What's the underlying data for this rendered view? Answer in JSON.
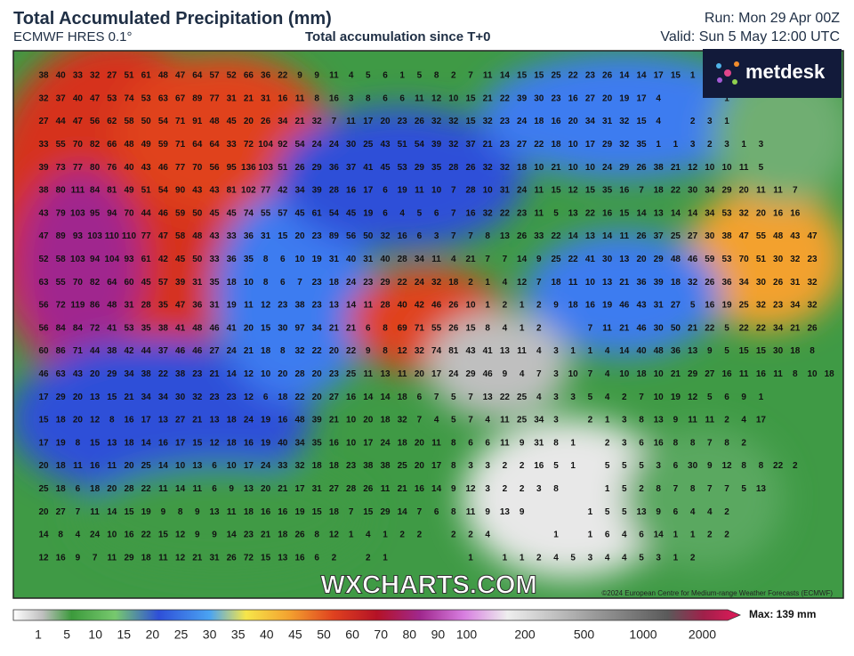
{
  "header": {
    "title": "Total Accumulated Precipitation (mm)",
    "model": "ECMWF HRES 0.1°",
    "subtitle": "Total accumulation since T+0",
    "run": "Run: Mon 29 Apr 00Z",
    "valid": "Valid: Sun 5 May 12:00 UTC"
  },
  "logo": "metdesk",
  "watermark": "WXCHARTS.COM",
  "copyright": "©2024 European Centre for Medium-range Weather Forecasts (ECMWF)",
  "legend": {
    "labels": [
      1,
      5,
      10,
      15,
      20,
      25,
      30,
      35,
      40,
      45,
      50,
      60,
      70,
      80,
      90,
      100,
      200,
      500,
      1000,
      2000
    ],
    "max": "Max: 139 mm"
  },
  "map": {
    "rows": [
      [
        38,
        40,
        33,
        32,
        27,
        51,
        61,
        48,
        47,
        64,
        57,
        52,
        66,
        36,
        22,
        9,
        9,
        11,
        4,
        5,
        6,
        1,
        5,
        8,
        2,
        7,
        11,
        14,
        15,
        15,
        25,
        22,
        23,
        26,
        14,
        14,
        17,
        15,
        1
      ],
      [
        32,
        37,
        40,
        47,
        53,
        74,
        53,
        63,
        67,
        89,
        77,
        31,
        21,
        31,
        16,
        11,
        8,
        16,
        3,
        8,
        6,
        6,
        11,
        12,
        10,
        15,
        21,
        22,
        39,
        30,
        23,
        16,
        27,
        20,
        19,
        17,
        4,
        null,
        null,
        null,
        1
      ],
      [
        27,
        44,
        47,
        56,
        62,
        58,
        50,
        54,
        71,
        91,
        48,
        45,
        20,
        26,
        34,
        21,
        32,
        7,
        11,
        17,
        20,
        23,
        26,
        32,
        32,
        15,
        32,
        23,
        24,
        18,
        16,
        20,
        34,
        31,
        32,
        15,
        4,
        null,
        2,
        3,
        1
      ],
      [
        33,
        55,
        70,
        82,
        66,
        48,
        49,
        59,
        71,
        64,
        64,
        33,
        72,
        104,
        92,
        54,
        24,
        24,
        30,
        25,
        43,
        51,
        54,
        39,
        32,
        37,
        21,
        23,
        27,
        22,
        18,
        10,
        17,
        29,
        32,
        35,
        1,
        1,
        3,
        2,
        3,
        1,
        3
      ],
      [
        39,
        73,
        77,
        80,
        76,
        40,
        43,
        46,
        77,
        70,
        56,
        95,
        136,
        103,
        51,
        26,
        29,
        36,
        37,
        41,
        45,
        53,
        29,
        35,
        28,
        26,
        32,
        32,
        18,
        10,
        21,
        10,
        10,
        24,
        29,
        26,
        38,
        21,
        12,
        10,
        10,
        11,
        5
      ],
      [
        38,
        80,
        111,
        84,
        81,
        49,
        51,
        54,
        90,
        43,
        43,
        81,
        102,
        77,
        42,
        34,
        39,
        28,
        16,
        17,
        6,
        19,
        11,
        10,
        7,
        28,
        10,
        31,
        24,
        11,
        15,
        12,
        15,
        35,
        16,
        7,
        18,
        22,
        30,
        34,
        29,
        20,
        11,
        11,
        7
      ],
      [
        43,
        79,
        103,
        95,
        94,
        70,
        44,
        46,
        59,
        50,
        45,
        45,
        74,
        55,
        57,
        45,
        61,
        54,
        45,
        19,
        6,
        4,
        5,
        6,
        7,
        16,
        32,
        22,
        23,
        11,
        5,
        13,
        22,
        16,
        15,
        14,
        13,
        14,
        14,
        34,
        53,
        32,
        20,
        16,
        16
      ],
      [
        47,
        89,
        93,
        103,
        110,
        110,
        77,
        47,
        58,
        48,
        43,
        33,
        36,
        31,
        15,
        20,
        23,
        89,
        56,
        50,
        32,
        16,
        6,
        3,
        7,
        7,
        8,
        13,
        26,
        33,
        22,
        14,
        13,
        14,
        11,
        26,
        37,
        25,
        27,
        30,
        38,
        47,
        55,
        48,
        43,
        47
      ],
      [
        52,
        58,
        103,
        94,
        104,
        93,
        61,
        42,
        45,
        50,
        33,
        36,
        35,
        8,
        6,
        10,
        19,
        31,
        40,
        31,
        40,
        28,
        34,
        11,
        4,
        21,
        7,
        7,
        14,
        9,
        25,
        22,
        41,
        30,
        13,
        20,
        29,
        48,
        46,
        59,
        53,
        70,
        51,
        30,
        32,
        23
      ],
      [
        63,
        55,
        70,
        82,
        64,
        60,
        45,
        57,
        39,
        31,
        35,
        18,
        10,
        8,
        6,
        7,
        23,
        18,
        24,
        23,
        29,
        22,
        24,
        32,
        18,
        2,
        1,
        4,
        12,
        7,
        18,
        11,
        10,
        13,
        21,
        36,
        39,
        18,
        32,
        26,
        36,
        34,
        30,
        26,
        31,
        32
      ],
      [
        56,
        72,
        119,
        86,
        48,
        31,
        28,
        35,
        47,
        36,
        31,
        19,
        11,
        12,
        23,
        38,
        23,
        13,
        14,
        11,
        28,
        40,
        42,
        46,
        26,
        10,
        1,
        2,
        1,
        2,
        9,
        18,
        16,
        19,
        46,
        43,
        31,
        27,
        5,
        16,
        19,
        25,
        32,
        23,
        34,
        32
      ],
      [
        56,
        84,
        84,
        72,
        41,
        53,
        35,
        38,
        41,
        48,
        46,
        41,
        20,
        15,
        30,
        97,
        34,
        21,
        21,
        6,
        8,
        69,
        71,
        55,
        26,
        15,
        8,
        4,
        1,
        2,
        null,
        null,
        7,
        11,
        21,
        46,
        30,
        50,
        21,
        22,
        5,
        22,
        22,
        34,
        21,
        26
      ],
      [
        60,
        86,
        71,
        44,
        38,
        42,
        44,
        37,
        46,
        46,
        27,
        24,
        21,
        18,
        8,
        32,
        22,
        20,
        22,
        9,
        8,
        12,
        32,
        74,
        81,
        43,
        41,
        13,
        11,
        4,
        3,
        1,
        1,
        4,
        14,
        40,
        48,
        36,
        13,
        9,
        5,
        15,
        15,
        30,
        18,
        8
      ],
      [
        46,
        63,
        43,
        20,
        29,
        34,
        38,
        22,
        38,
        23,
        21,
        14,
        12,
        10,
        20,
        28,
        20,
        23,
        25,
        11,
        13,
        11,
        20,
        17,
        24,
        29,
        46,
        9,
        4,
        7,
        3,
        10,
        7,
        4,
        10,
        18,
        10,
        21,
        29,
        27,
        16,
        11,
        16,
        11,
        8,
        10,
        18
      ],
      [
        17,
        29,
        20,
        13,
        15,
        21,
        34,
        34,
        30,
        32,
        23,
        23,
        12,
        6,
        18,
        22,
        20,
        27,
        16,
        14,
        14,
        18,
        6,
        7,
        5,
        7,
        13,
        22,
        25,
        4,
        3,
        3,
        5,
        4,
        2,
        7,
        10,
        19,
        12,
        5,
        6,
        9,
        1
      ],
      [
        15,
        18,
        20,
        12,
        8,
        16,
        17,
        13,
        27,
        21,
        13,
        18,
        24,
        19,
        16,
        48,
        39,
        21,
        10,
        20,
        18,
        32,
        7,
        4,
        5,
        7,
        4,
        11,
        25,
        34,
        3,
        null,
        2,
        1,
        3,
        8,
        13,
        9,
        11,
        11,
        2,
        4,
        17
      ],
      [
        17,
        19,
        8,
        15,
        13,
        18,
        14,
        16,
        17,
        15,
        12,
        18,
        16,
        19,
        40,
        34,
        35,
        16,
        10,
        17,
        24,
        18,
        20,
        11,
        8,
        6,
        6,
        11,
        9,
        31,
        8,
        1,
        null,
        2,
        3,
        6,
        16,
        8,
        8,
        7,
        8,
        2
      ],
      [
        20,
        18,
        11,
        16,
        11,
        20,
        25,
        14,
        10,
        13,
        6,
        10,
        17,
        24,
        33,
        32,
        18,
        18,
        23,
        38,
        38,
        25,
        20,
        17,
        8,
        3,
        3,
        2,
        2,
        16,
        5,
        1,
        null,
        5,
        5,
        5,
        3,
        6,
        30,
        9,
        12,
        8,
        8,
        22,
        2
      ],
      [
        25,
        18,
        6,
        18,
        20,
        28,
        22,
        11,
        14,
        11,
        6,
        9,
        13,
        20,
        21,
        17,
        31,
        27,
        28,
        26,
        11,
        21,
        16,
        14,
        9,
        12,
        3,
        2,
        2,
        3,
        8,
        null,
        null,
        1,
        5,
        2,
        8,
        7,
        8,
        7,
        7,
        5,
        13
      ],
      [
        20,
        27,
        7,
        11,
        14,
        15,
        19,
        9,
        8,
        9,
        13,
        11,
        18,
        16,
        16,
        19,
        15,
        18,
        7,
        15,
        29,
        14,
        7,
        6,
        8,
        11,
        9,
        13,
        9,
        null,
        null,
        null,
        1,
        5,
        5,
        13,
        9,
        6,
        4,
        4,
        2
      ],
      [
        14,
        8,
        4,
        24,
        10,
        16,
        22,
        15,
        12,
        9,
        9,
        14,
        23,
        21,
        18,
        26,
        8,
        12,
        1,
        4,
        1,
        2,
        2,
        null,
        2,
        2,
        4,
        null,
        null,
        null,
        1,
        null,
        1,
        6,
        4,
        6,
        14,
        1,
        1,
        2,
        2
      ],
      [
        12,
        16,
        9,
        7,
        11,
        29,
        18,
        11,
        12,
        21,
        31,
        26,
        72,
        15,
        13,
        16,
        6,
        2,
        null,
        2,
        1,
        null,
        null,
        null,
        null,
        1,
        null,
        1,
        1,
        2,
        4,
        5,
        3,
        4,
        4,
        5,
        3,
        1,
        2
      ]
    ]
  }
}
